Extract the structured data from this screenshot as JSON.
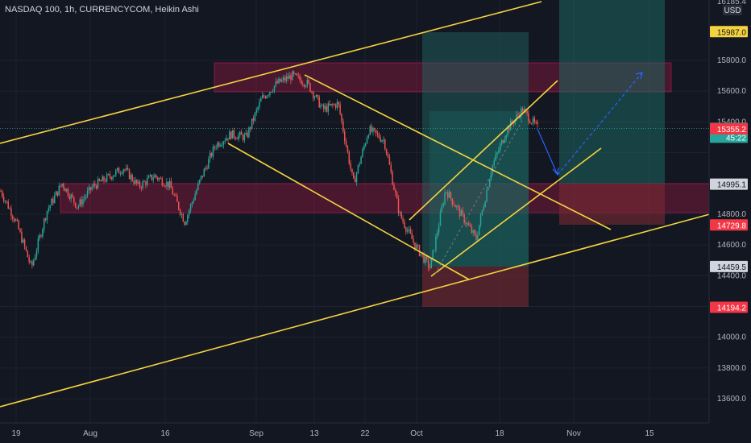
{
  "header": {
    "title": "NASDAQ 100, 1h, CURRENCYCOM, Heikin Ashi"
  },
  "price_axis": {
    "currency_label": "USD",
    "top_partial_label": "16185.4",
    "ticks": [
      "15800.0",
      "15600.0",
      "15400.0",
      "14800.0",
      "14600.0",
      "14400.0",
      "14000.0",
      "13800.0",
      "13600.0"
    ],
    "badges": [
      {
        "label": "15987.0",
        "value": 15987.0,
        "bg": "#f5d33f",
        "fg": "#131722"
      },
      {
        "label": "15358.1",
        "value": 15358.1,
        "bg": "#26a69a",
        "fg": "#ffffff",
        "countdown": "45:22"
      },
      {
        "label": "15355.2",
        "value": 15355.2,
        "bg": "#f23645",
        "fg": "#ffffff"
      },
      {
        "label": "14995.1",
        "value": 14995.1,
        "bg": "#d1d4dc",
        "fg": "#131722"
      },
      {
        "label": "14729.8",
        "value": 14729.8,
        "bg": "#f23645",
        "fg": "#ffffff"
      },
      {
        "label": "14459.5",
        "value": 14459.5,
        "bg": "#d1d4dc",
        "fg": "#131722"
      },
      {
        "label": "14194.2",
        "value": 14194.2,
        "bg": "#f23645",
        "fg": "#ffffff"
      }
    ]
  },
  "time_axis": {
    "labels": [
      "19",
      "Aug",
      "16",
      "Sep",
      "13",
      "22",
      "Oct",
      "18",
      "Nov",
      "15"
    ]
  },
  "colors": {
    "background": "#131722",
    "grid": "#1e222d",
    "up": "#26a69a",
    "down": "#ef5350",
    "trendline": "#f5d33f",
    "zone": "#8b1a3e",
    "profit_zone": "#1e6b64",
    "loss_zone": "#7a2a33",
    "projection": "#2962ff"
  },
  "chart_data": {
    "type": "candlestick",
    "symbol": "NASDAQ 100",
    "interval": "1h",
    "source": "CURRENCYCOM",
    "style": "Heikin Ashi",
    "ylim": [
      13450,
      16200
    ],
    "last_price": 15358.1,
    "path": [
      {
        "d": "19",
        "p": 14950
      },
      {
        "d": "",
        "p": 14750
      },
      {
        "d": "",
        "p": 14450
      },
      {
        "d": "",
        "p": 14820
      },
      {
        "d": "",
        "p": 15000
      },
      {
        "d": "Aug",
        "p": 14850
      },
      {
        "d": "",
        "p": 14980
      },
      {
        "d": "",
        "p": 15040
      },
      {
        "d": "",
        "p": 15100
      },
      {
        "d": "",
        "p": 14980
      },
      {
        "d": "16",
        "p": 15050
      },
      {
        "d": "",
        "p": 14990
      },
      {
        "d": "",
        "p": 14750
      },
      {
        "d": "",
        "p": 15020
      },
      {
        "d": "",
        "p": 15250
      },
      {
        "d": "",
        "p": 15320
      },
      {
        "d": "",
        "p": 15300
      },
      {
        "d": "Sep",
        "p": 15550
      },
      {
        "d": "",
        "p": 15650
      },
      {
        "d": "",
        "p": 15700
      },
      {
        "d": "13",
        "p": 15650
      },
      {
        "d": "",
        "p": 15480
      },
      {
        "d": "",
        "p": 15520
      },
      {
        "d": "22",
        "p": 15000
      },
      {
        "d": "",
        "p": 15350
      },
      {
        "d": "",
        "p": 15280
      },
      {
        "d": "",
        "p": 14800
      },
      {
        "d": "Oct",
        "p": 14600
      },
      {
        "d": "",
        "p": 14450
      },
      {
        "d": "",
        "p": 14960
      },
      {
        "d": "",
        "p": 14800
      },
      {
        "d": "",
        "p": 14640
      },
      {
        "d": "18",
        "p": 15100
      },
      {
        "d": "",
        "p": 15350
      },
      {
        "d": "",
        "p": 15480
      },
      {
        "d": "",
        "p": 15360
      }
    ]
  }
}
